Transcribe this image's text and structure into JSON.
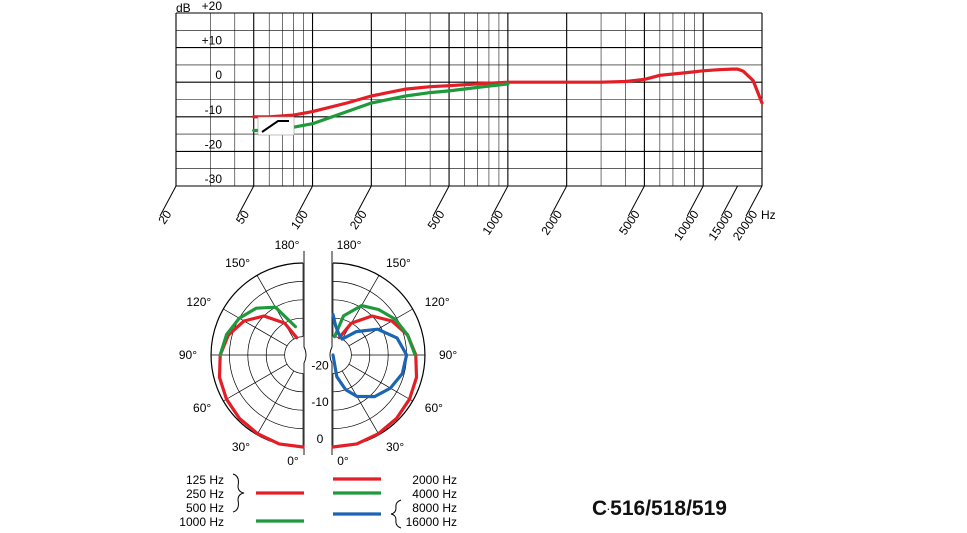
{
  "model": {
    "prefix": "C",
    "separator": "·",
    "numbers": "516/518/519"
  },
  "colors": {
    "red": "#e41e26",
    "green": "#1e9a3c",
    "blue": "#1c64b4",
    "grid": "#000000"
  },
  "chart_data": [
    {
      "type": "line",
      "title": "",
      "ylabel": "dB",
      "xlabel": "Hz",
      "xscale": "log",
      "xlim": [
        20,
        20000
      ],
      "ylim": [
        -30,
        20
      ],
      "yticks": [
        "+20",
        "+10",
        "0",
        "-10",
        "-20",
        "-30"
      ],
      "xticks": [
        "20",
        "50",
        "100",
        "200",
        "500",
        "1000",
        "2000",
        "5000",
        "10000",
        "15000",
        "20000"
      ],
      "grid": true,
      "filter_symbol": "low-cut",
      "series": [
        {
          "color": "red",
          "x": [
            50,
            60,
            80,
            100,
            150,
            200,
            300,
            400,
            500,
            700,
            1000,
            1500,
            2000,
            3000,
            4000,
            5000,
            6000,
            8000,
            10000,
            12000,
            14000,
            15000,
            16000,
            18000,
            20000
          ],
          "y": [
            -10,
            -10,
            -9.5,
            -8.5,
            -6,
            -4,
            -2,
            -1.3,
            -1,
            -0.5,
            0,
            0,
            0,
            0,
            0.2,
            0.8,
            2,
            2.7,
            3.3,
            3.6,
            3.8,
            3.8,
            3.2,
            0.5,
            -6
          ]
        },
        {
          "color": "green",
          "x": [
            50,
            60,
            80,
            100,
            150,
            200,
            300,
            400,
            500,
            700,
            1000
          ],
          "y": [
            -14,
            -13.8,
            -13,
            -12,
            -8.5,
            -6,
            -4,
            -3,
            -2.5,
            -1.5,
            -0.5
          ]
        }
      ]
    },
    {
      "type": "polar",
      "title": "",
      "angle_labels": {
        "left": [
          "180°",
          "150°",
          "120°",
          "90°",
          "60°",
          "30°",
          "0°"
        ],
        "right": [
          "180°",
          "150°",
          "120°",
          "90°",
          "60°",
          "30°",
          "0°"
        ]
      },
      "radial_labels": [
        "-20",
        "-10",
        "0"
      ],
      "rlim": [
        -25,
        0
      ],
      "series": [
        {
          "side": "left",
          "color": "red",
          "legend_key": "left-red",
          "angles": [
            0,
            15,
            30,
            45,
            60,
            75,
            90,
            105,
            120,
            135,
            150,
            160
          ],
          "db": [
            0,
            0,
            -0.3,
            -0.6,
            -1,
            -1.5,
            -2.5,
            -4,
            -6.5,
            -10,
            -15,
            -20
          ]
        },
        {
          "side": "left",
          "color": "green",
          "legend_key": "left-green",
          "angles": [
            90,
            105,
            120,
            135,
            150,
            165
          ],
          "db": [
            -2.5,
            -3.5,
            -5,
            -7,
            -10,
            -17
          ]
        },
        {
          "side": "right",
          "color": "red",
          "legend_key": "right-red",
          "angles": [
            0,
            15,
            30,
            45,
            60,
            75,
            90,
            105,
            120,
            135,
            150,
            160
          ],
          "db": [
            0,
            0,
            -0.3,
            -0.6,
            -1,
            -1.5,
            -2.5,
            -4,
            -6.5,
            -10,
            -15,
            -20
          ]
        },
        {
          "side": "right",
          "color": "green",
          "legend_key": "right-green",
          "angles": [
            90,
            105,
            120,
            135,
            150,
            165,
            175
          ],
          "db": [
            -2.7,
            -4,
            -5.5,
            -7.5,
            -9.5,
            -14,
            -20
          ]
        },
        {
          "side": "right",
          "color": "blue",
          "legend_key": "right-blue",
          "angles": [
            0,
            10,
            20,
            30,
            45,
            60,
            75,
            90,
            105,
            120,
            135,
            150,
            165,
            175,
            180
          ],
          "db": [
            -25,
            -19,
            -15,
            -12,
            -9,
            -7,
            -5.5,
            -5,
            -7,
            -11,
            -16,
            -20,
            -19,
            -17,
            -14
          ]
        }
      ],
      "legend": {
        "left-red": [
          "125 Hz",
          "250 Hz",
          "500 Hz"
        ],
        "left-green": [
          "1000 Hz"
        ],
        "right-red": [
          "2000 Hz"
        ],
        "right-green": [
          "4000 Hz"
        ],
        "right-blue": [
          "8000 Hz",
          "16000 Hz"
        ]
      }
    }
  ]
}
